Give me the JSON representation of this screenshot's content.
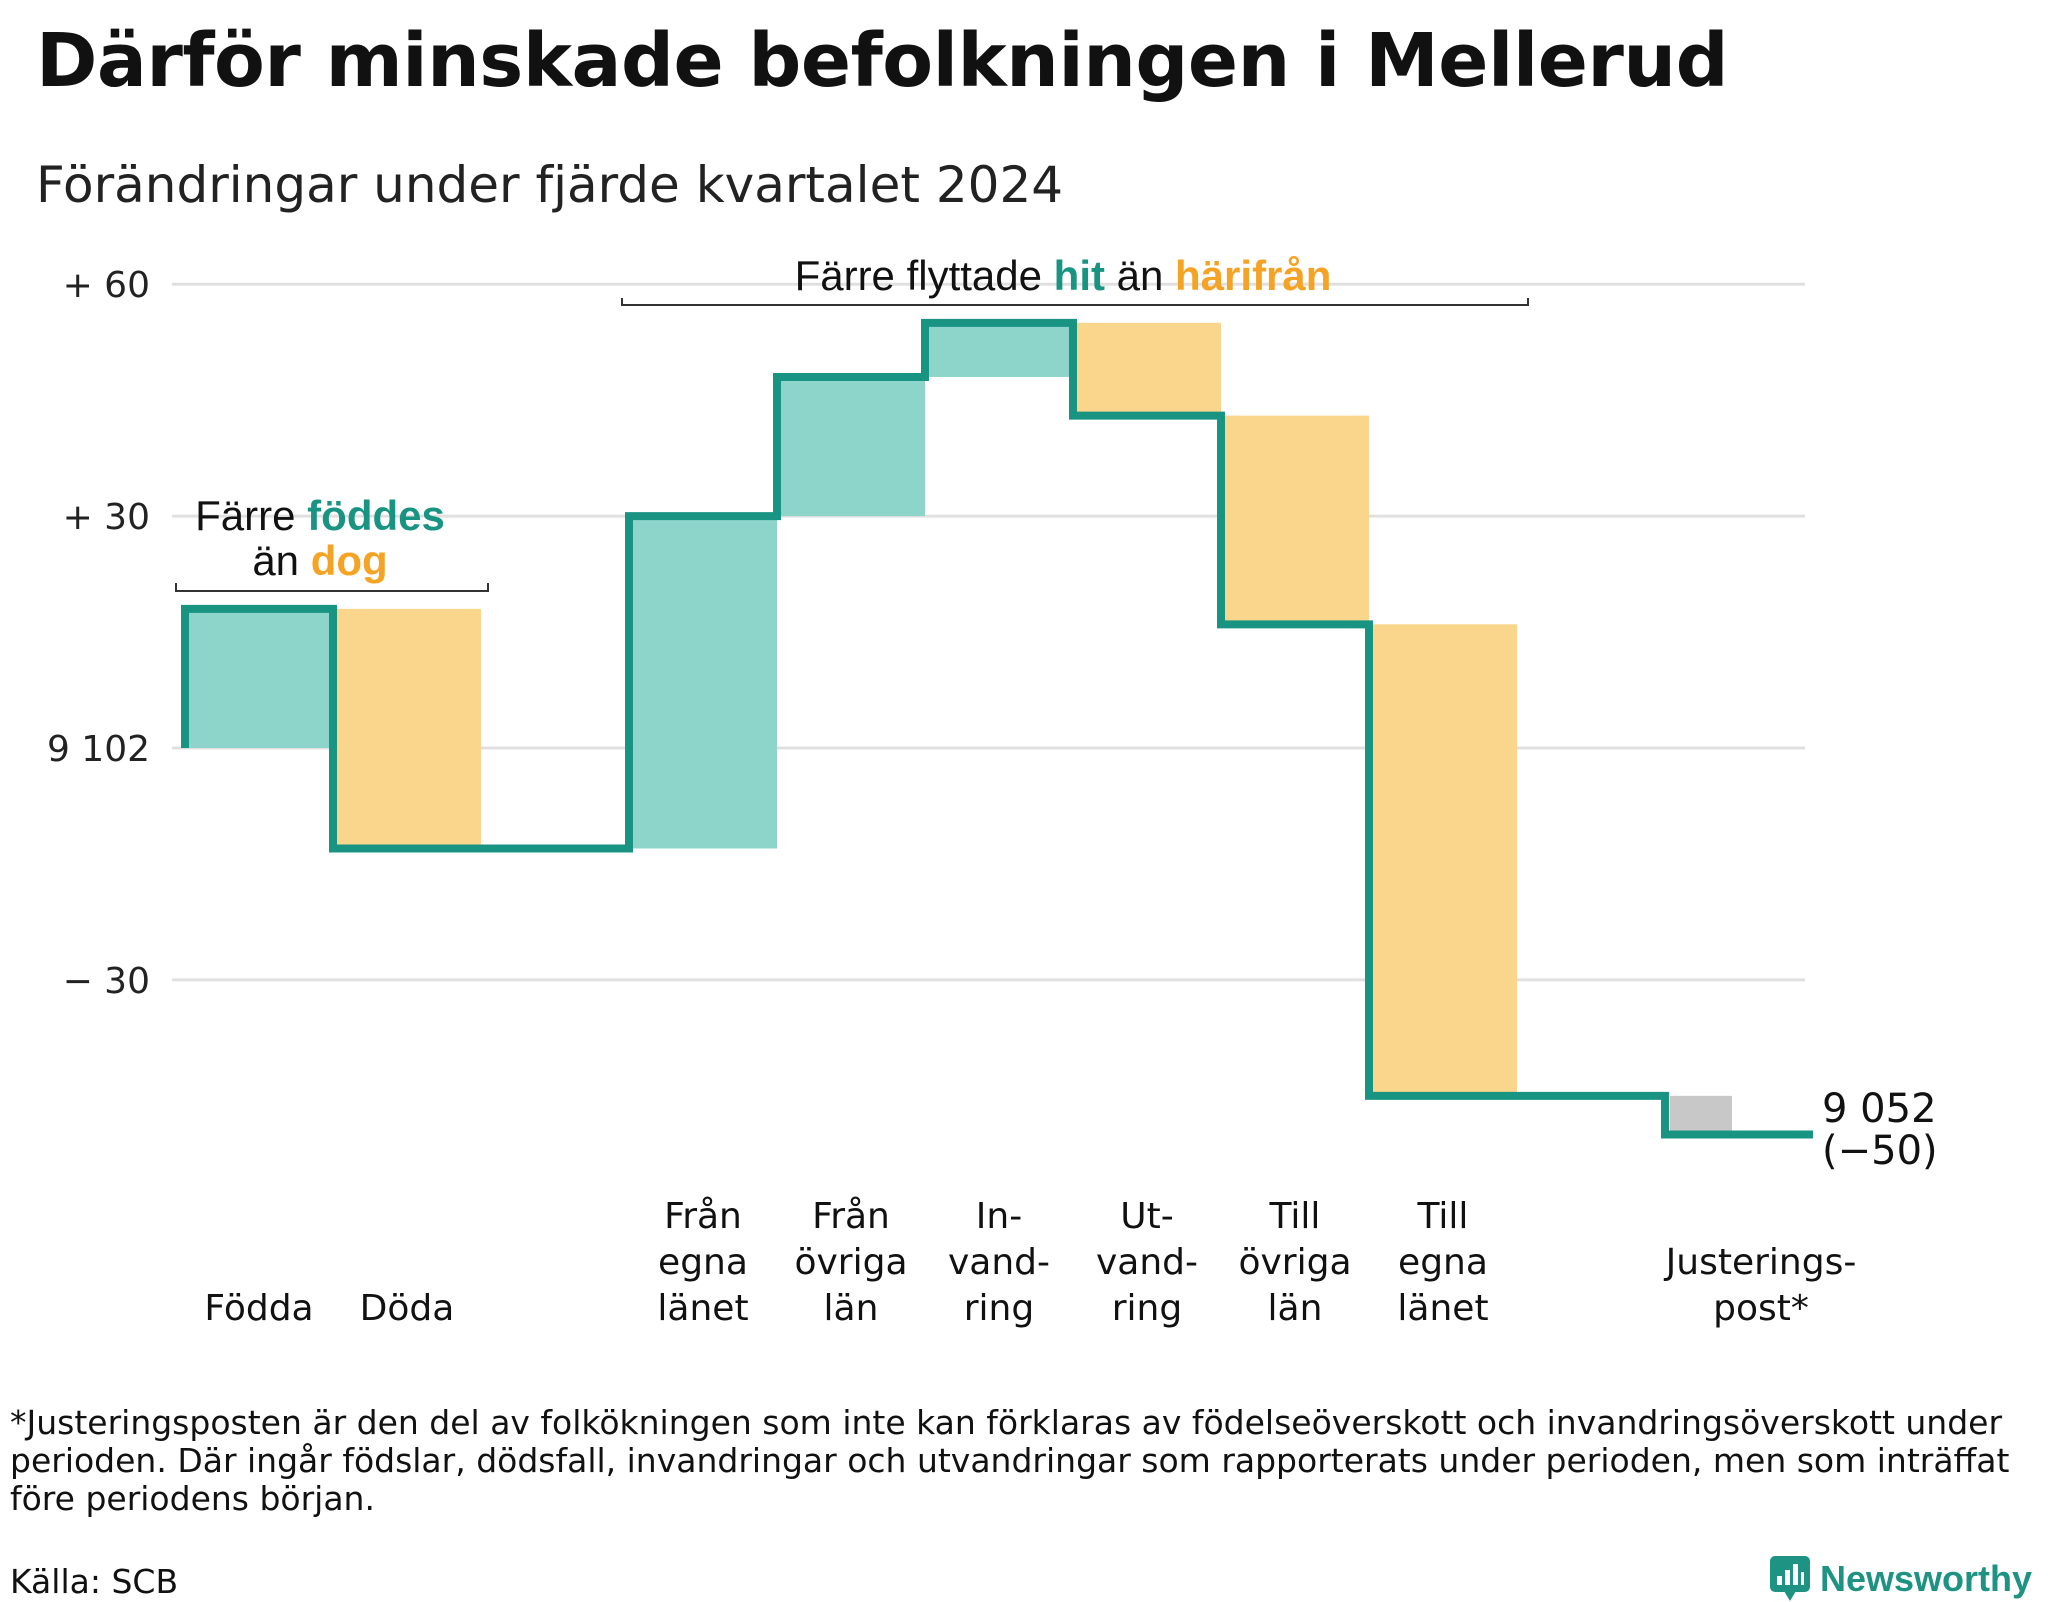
{
  "title": "Därför minskade befolkningen i Mellerud",
  "subtitle": "Förändringar under fjärde kvartalet 2024",
  "chart_data": {
    "type": "waterfall",
    "start_value": 9102,
    "start_label": "9 102",
    "y_ticks": [
      {
        "value": 60,
        "label": "+ 60"
      },
      {
        "value": 30,
        "label": "+ 30"
      },
      {
        "value": 0,
        "label": "9 102"
      },
      {
        "value": -30,
        "label": "− 30"
      }
    ],
    "ylim": [
      -55,
      65
    ],
    "grid": true,
    "steps": [
      {
        "lines": [
          "Födda"
        ],
        "change": 18,
        "kind": "in"
      },
      {
        "lines": [
          "Döda"
        ],
        "change": -31,
        "kind": "out"
      },
      {
        "lines": [
          ""
        ],
        "change": 0,
        "kind": "none"
      },
      {
        "lines": [
          "Från",
          "egna",
          "länet"
        ],
        "change": 43,
        "kind": "in"
      },
      {
        "lines": [
          "Från",
          "övriga",
          "län"
        ],
        "change": 18,
        "kind": "in"
      },
      {
        "lines": [
          "In-",
          "vand-",
          "ring"
        ],
        "change": 7,
        "kind": "in"
      },
      {
        "lines": [
          "Ut-",
          "vand-",
          "ring"
        ],
        "change": -12,
        "kind": "out"
      },
      {
        "lines": [
          "Till",
          "övriga",
          "län"
        ],
        "change": -27,
        "kind": "out"
      },
      {
        "lines": [
          "Till",
          "egna",
          "länet"
        ],
        "change": -61,
        "kind": "out"
      },
      {
        "lines": [
          ""
        ],
        "change": 0,
        "kind": "none"
      },
      {
        "lines": [
          "Justerings-",
          "post*"
        ],
        "change": -5,
        "kind": "adjust"
      }
    ],
    "end_value": 9052,
    "end_label_lines": [
      "9 052",
      "(−50)"
    ],
    "annotations": {
      "births": {
        "line1": "Färre ",
        "line1_hl": "föddes",
        "line2": "än ",
        "line2_hl": "dog"
      },
      "moves": {
        "pre": "Färre flyttade ",
        "hl1": "hit",
        "mid": " än ",
        "hl2": "härifrån"
      }
    },
    "colors": {
      "line": "#1a9482",
      "in_fill": "#8dd4cb",
      "out_fill": "#fad58c",
      "adjust_fill": "#c8c8c8",
      "in_text": "#1a9482",
      "out_text": "#f5a325",
      "grid": "#e0e0e0",
      "bracket": "#333333"
    }
  },
  "footnote": "*Justeringsposten är den del av folkökningen som inte kan förklaras av födelseöverskott och invandringsöverskott under perioden. Där ingår födslar, dödsfall, invandringar och utvandringar som rapporterats under perioden, men som inträffat före periodens början.",
  "source": "Källa: SCB",
  "brand": {
    "name": "Newsworthy",
    "icon": "newsworthy-logo-icon",
    "color": "#1e9384"
  }
}
